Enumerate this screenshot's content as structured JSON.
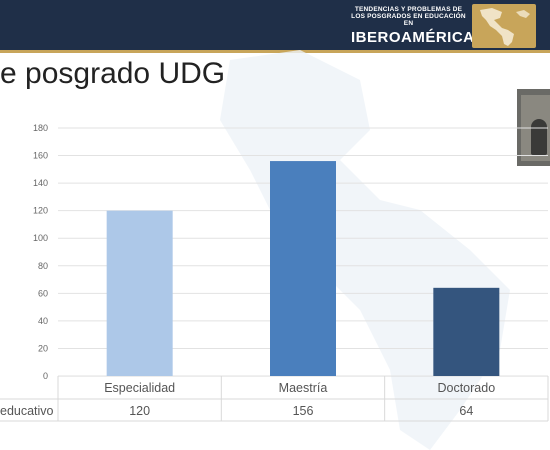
{
  "header": {
    "logo_line1": "TENDENCIAS Y PROBLEMAS DE",
    "logo_line2": "LOS POSGRADOS EN EDUCACIÓN EN",
    "logo_line3": "IBEROAMÉRICA",
    "bg_color": "#1f2f48",
    "accent_color": "#c8a55a"
  },
  "slide": {
    "title": "e posgrado UDG"
  },
  "chart_data": {
    "type": "bar",
    "categories": [
      "Especialidad",
      "Maestría",
      "Doctorado"
    ],
    "values": [
      120,
      156,
      64
    ],
    "colors": [
      "#adc8e8",
      "#4a7fbd",
      "#34557e"
    ],
    "ylim": [
      0,
      180
    ],
    "yticks": [
      "0",
      "20",
      "40",
      "60",
      "80",
      "100",
      "120",
      "140",
      "160",
      "180"
    ],
    "grid": true,
    "table_row_label": "educativo"
  }
}
